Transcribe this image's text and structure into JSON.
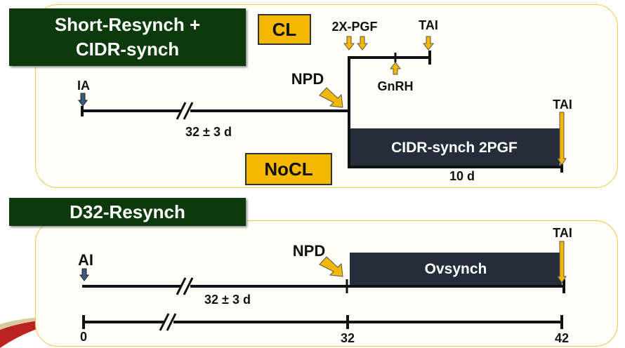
{
  "top_protocol": {
    "title_line1": "Short-Resynch +",
    "title_line2": "CIDR-synch",
    "cl_label": "CL",
    "nocl_label": "NoCL",
    "pgf_label": "2X-PGF",
    "tai_upper_label": "TAI",
    "gnrh_label": "GnRH",
    "ia_label": "IA",
    "npd_label": "NPD",
    "interval_label": "32 ± 3 d",
    "cidr_box_label": "CIDR-synch 2PGF",
    "tai_lower_label": "TAI",
    "duration_label": "10 d"
  },
  "bottom_protocol": {
    "title": "D32-Resynch",
    "ai_label": "AI",
    "npd_label": "NPD",
    "ovsynch_label": "Ovsynch",
    "tai_label": "TAI",
    "interval_label": "32 ± 3 d",
    "axis_ticks": [
      "0",
      "32",
      "42"
    ]
  },
  "colors": {
    "title_bg": "#0d3a0d",
    "highlight": "#f5b800",
    "protocol_box": "#262d3a",
    "arrow_blue": "#3a5a80",
    "panel_border": "#f2c94c"
  }
}
